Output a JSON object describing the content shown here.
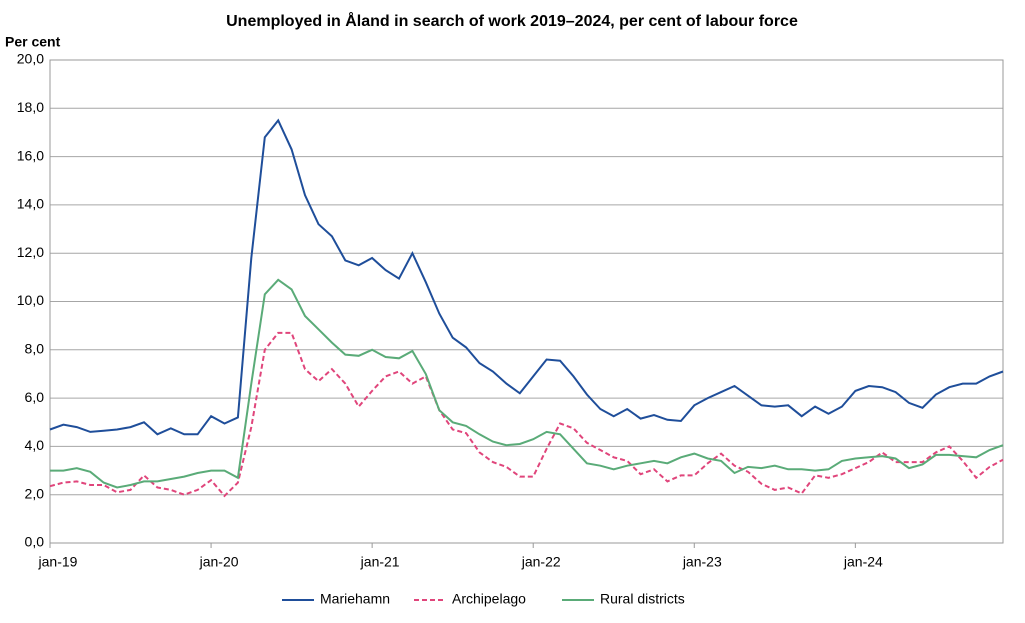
{
  "chart_data": {
    "type": "line",
    "title": "Unemployed in Åland in search of work 2019–2024,  per cent of labour force",
    "y_label": "Per cent",
    "categories": [
      "jan-19",
      null,
      null,
      null,
      null,
      null,
      null,
      null,
      null,
      null,
      null,
      null,
      "jan-20",
      null,
      null,
      null,
      null,
      null,
      null,
      null,
      null,
      null,
      null,
      null,
      "jan-21",
      null,
      null,
      null,
      null,
      null,
      null,
      null,
      null,
      null,
      null,
      null,
      "jan-22",
      null,
      null,
      null,
      null,
      null,
      null,
      null,
      null,
      null,
      null,
      null,
      "jan-23",
      null,
      null,
      null,
      null,
      null,
      null,
      null,
      null,
      null,
      null,
      null,
      "jan-24",
      null,
      null,
      null,
      null,
      null,
      null,
      null,
      null,
      null,
      null,
      null
    ],
    "ylim": [
      0,
      20
    ],
    "yticks": [
      {
        "value": 0,
        "label": "0,0"
      },
      {
        "value": 2,
        "label": "2,0"
      },
      {
        "value": 4,
        "label": "4,0"
      },
      {
        "value": 6,
        "label": "6,0"
      },
      {
        "value": 8,
        "label": "8,0"
      },
      {
        "value": 10,
        "label": "10,0"
      },
      {
        "value": 12,
        "label": "12,0"
      },
      {
        "value": 14,
        "label": "14,0"
      },
      {
        "value": 16,
        "label": "16,0"
      },
      {
        "value": 18,
        "label": "18,0"
      },
      {
        "value": 20,
        "label": "20,0"
      }
    ],
    "grid": true,
    "legend": "bottom",
    "series": [
      {
        "name": "Mariehamn",
        "color": "#1f4e9a",
        "line_style": "solid",
        "values": [
          4.7,
          4.9,
          4.8,
          4.6,
          4.65,
          4.7,
          4.8,
          5.0,
          4.5,
          4.75,
          4.5,
          4.5,
          5.25,
          4.95,
          5.2,
          11.8,
          16.8,
          17.5,
          16.3,
          14.4,
          13.2,
          12.7,
          11.7,
          11.5,
          11.8,
          11.3,
          10.95,
          12.0,
          10.8,
          9.5,
          8.5,
          8.1,
          7.45,
          7.1,
          6.6,
          6.2,
          6.9,
          7.6,
          7.55,
          6.9,
          6.15,
          5.55,
          5.25,
          5.55,
          5.15,
          5.3,
          5.1,
          5.05,
          5.7,
          6.0,
          6.25,
          6.5,
          6.1,
          5.7,
          5.65,
          5.7,
          5.25,
          5.65,
          5.35,
          5.65,
          6.3,
          6.5,
          6.45,
          6.25,
          5.8,
          5.6,
          6.15,
          6.45,
          6.6,
          6.6,
          6.9,
          7.1
        ]
      },
      {
        "name": "Archipelago",
        "color": "#e0457b",
        "line_style": "dashed",
        "values": [
          2.35,
          2.5,
          2.55,
          2.4,
          2.4,
          2.1,
          2.2,
          2.8,
          2.3,
          2.2,
          2.0,
          2.2,
          2.6,
          1.95,
          2.5,
          4.8,
          8.0,
          8.7,
          8.7,
          7.2,
          6.7,
          7.2,
          6.6,
          5.65,
          6.3,
          6.9,
          7.1,
          6.6,
          6.9,
          5.5,
          4.7,
          4.55,
          3.75,
          3.35,
          3.15,
          2.75,
          2.75,
          3.9,
          4.95,
          4.75,
          4.15,
          3.85,
          3.55,
          3.4,
          2.85,
          3.05,
          2.55,
          2.8,
          2.8,
          3.3,
          3.7,
          3.2,
          2.95,
          2.45,
          2.2,
          2.3,
          2.05,
          2.8,
          2.7,
          2.85,
          3.1,
          3.35,
          3.75,
          3.35,
          3.35,
          3.35,
          3.75,
          4.0,
          3.4,
          2.7,
          3.15,
          3.45
        ]
      },
      {
        "name": "Rural districts",
        "color": "#5aab78",
        "line_style": "solid",
        "values": [
          3.0,
          3.0,
          3.1,
          2.95,
          2.5,
          2.3,
          2.4,
          2.55,
          2.55,
          2.65,
          2.75,
          2.9,
          3.0,
          3.0,
          2.7,
          6.6,
          10.3,
          10.9,
          10.5,
          9.4,
          8.85,
          8.3,
          7.8,
          7.75,
          8.0,
          7.7,
          7.65,
          7.95,
          7.0,
          5.5,
          5.0,
          4.85,
          4.5,
          4.2,
          4.05,
          4.1,
          4.3,
          4.6,
          4.5,
          3.9,
          3.3,
          3.2,
          3.05,
          3.2,
          3.3,
          3.4,
          3.3,
          3.55,
          3.7,
          3.5,
          3.4,
          2.9,
          3.15,
          3.1,
          3.2,
          3.05,
          3.05,
          3.0,
          3.05,
          3.4,
          3.5,
          3.55,
          3.6,
          3.5,
          3.1,
          3.25,
          3.65,
          3.65,
          3.6,
          3.55,
          3.85,
          4.05
        ]
      }
    ]
  }
}
